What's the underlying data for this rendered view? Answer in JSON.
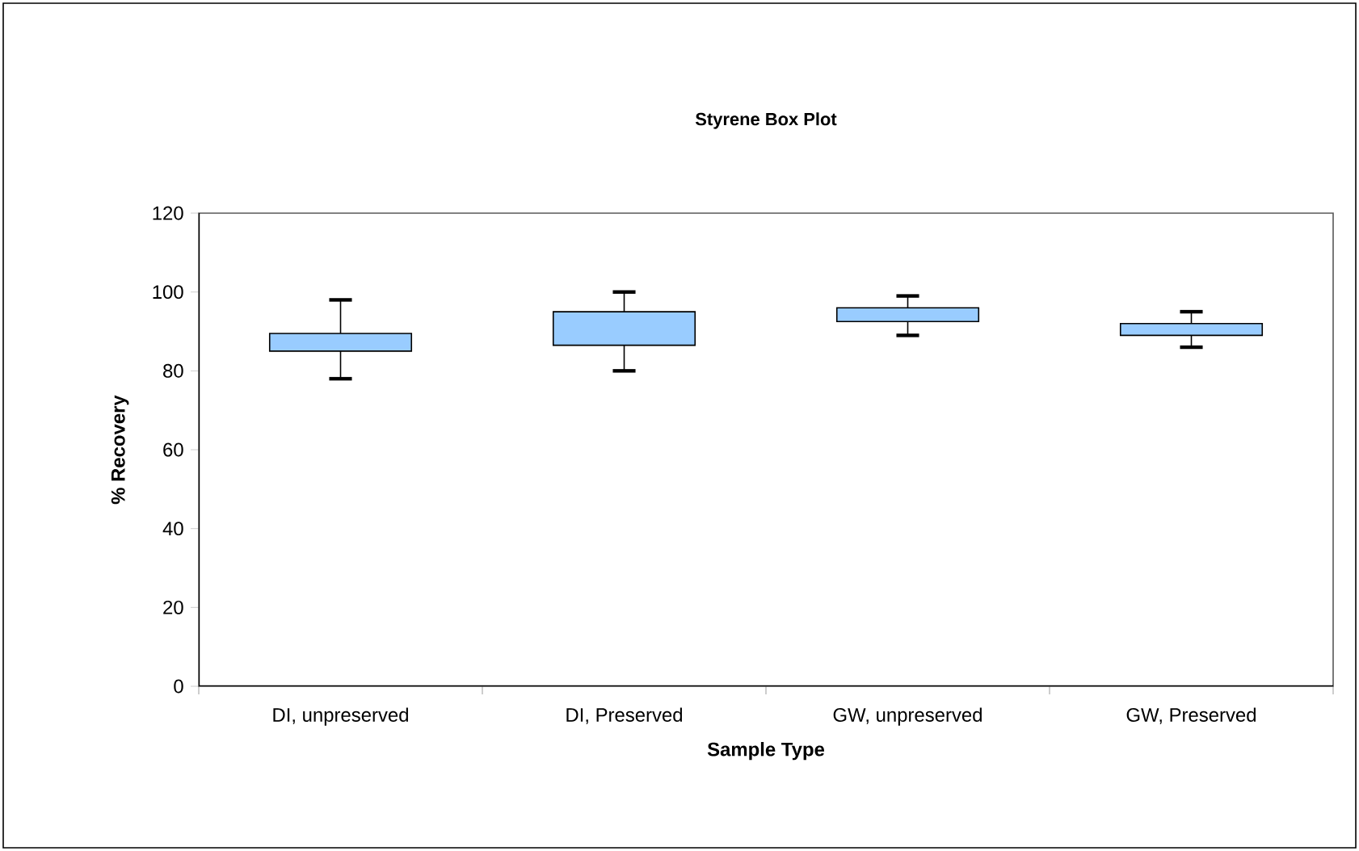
{
  "chart_data": {
    "type": "box",
    "title": "Styrene Box Plot",
    "xlabel": "Sample Type",
    "ylabel": "% Recovery",
    "categories": [
      "DI, unpreserved",
      "DI, Preserved",
      "GW, unpreserved",
      "GW, Preserved"
    ],
    "boxes": [
      {
        "low": 78,
        "q1": 85,
        "q3": 89.5,
        "high": 98
      },
      {
        "low": 80,
        "q1": 86.5,
        "q3": 95,
        "high": 100
      },
      {
        "low": 89,
        "q1": 92.5,
        "q3": 96,
        "high": 99
      },
      {
        "low": 86,
        "q1": 89,
        "q3": 92,
        "high": 95
      }
    ],
    "color": "#99ccff",
    "ylim": [
      0,
      120
    ],
    "yticks": [
      0,
      20,
      40,
      60,
      80,
      100,
      120
    ]
  }
}
